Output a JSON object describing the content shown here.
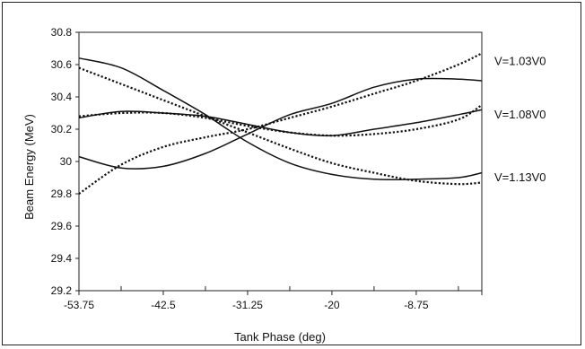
{
  "chart_data": {
    "type": "line",
    "title": "",
    "xlabel": "Tank Phase (deg)",
    "ylabel": "Beam Energy (MeV)",
    "xlim": [
      -53.75,
      0
    ],
    "ylim": [
      29.2,
      30.8
    ],
    "x_ticks": [
      -53.75,
      -42.5,
      -31.25,
      -20,
      -8.75
    ],
    "x_tick_labels": [
      "-53.75",
      "-42.5",
      "-31.25",
      "-20",
      "-8.75"
    ],
    "y_ticks": [
      29.2,
      29.4,
      29.6,
      29.8,
      30,
      30.2,
      30.4,
      30.6,
      30.8
    ],
    "y_tick_labels": [
      "29.2",
      "29.4",
      "29.6",
      "29.8",
      "30",
      "30.2",
      "30.4",
      "30.6",
      "30.8"
    ],
    "grid": false,
    "legend": "none",
    "annotations": [
      {
        "text": "V=1.03V0",
        "x": 0,
        "y": 30.62
      },
      {
        "text": "V=1.08V0",
        "x": 0,
        "y": 30.29
      },
      {
        "text": "V=1.13V0",
        "x": 0,
        "y": 29.9
      }
    ],
    "series": [
      {
        "style": "solid",
        "x": [
          -53.75,
          -48.125,
          -42.5,
          -36.875,
          -31.25,
          -25.625,
          -20,
          -14.375,
          -8.75,
          -3.125,
          0
        ],
        "y": [
          30.03,
          29.96,
          29.97,
          30.05,
          30.17,
          30.29,
          30.36,
          30.46,
          30.51,
          30.51,
          30.5
        ]
      },
      {
        "style": "dotted",
        "x": [
          -53.75,
          -48.125,
          -42.5,
          -36.875,
          -31.25,
          -25.625,
          -20,
          -14.375,
          -8.75,
          -3.125,
          0
        ],
        "y": [
          29.8,
          29.98,
          30.09,
          30.15,
          30.2,
          30.27,
          30.34,
          30.42,
          30.5,
          30.6,
          30.67
        ]
      },
      {
        "style": "solid",
        "x": [
          -53.75,
          -48.125,
          -42.5,
          -36.875,
          -31.25,
          -25.625,
          -20,
          -14.375,
          -8.75,
          -3.125,
          0
        ],
        "y": [
          30.27,
          30.31,
          30.3,
          30.28,
          30.23,
          30.18,
          30.16,
          30.2,
          30.24,
          30.29,
          30.32
        ]
      },
      {
        "style": "dotted",
        "x": [
          -53.75,
          -48.125,
          -42.5,
          -36.875,
          -31.25,
          -25.625,
          -20,
          -14.375,
          -8.75,
          -3.125,
          0
        ],
        "y": [
          30.28,
          30.3,
          30.3,
          30.27,
          30.22,
          30.18,
          30.16,
          30.17,
          30.2,
          30.26,
          30.35
        ]
      },
      {
        "style": "solid",
        "x": [
          -53.75,
          -48.125,
          -42.5,
          -36.875,
          -31.25,
          -25.625,
          -20,
          -14.375,
          -8.75,
          -3.125,
          0
        ],
        "y": [
          30.64,
          30.58,
          30.44,
          30.29,
          30.12,
          29.99,
          29.92,
          29.89,
          29.89,
          29.9,
          29.93
        ]
      },
      {
        "style": "dotted",
        "x": [
          -53.75,
          -48.125,
          -42.5,
          -36.875,
          -31.25,
          -25.625,
          -20,
          -14.375,
          -8.75,
          -3.125,
          0
        ],
        "y": [
          30.58,
          30.48,
          30.38,
          30.28,
          30.18,
          30.08,
          29.99,
          29.93,
          29.88,
          29.86,
          29.87
        ]
      }
    ]
  }
}
